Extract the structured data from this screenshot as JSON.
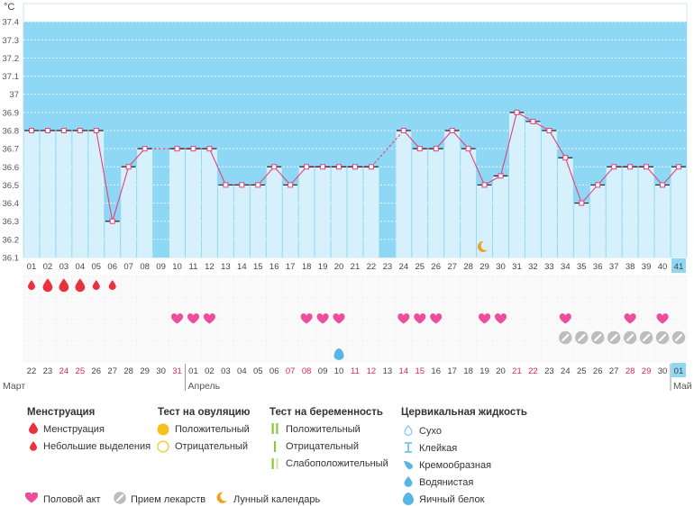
{
  "unit": "°C",
  "colors": {
    "menstruation": "#e8323c",
    "intercourse": "#ee4d9b",
    "medication": "#bdbdbd",
    "moon": "#f0a01e",
    "ovulation_positive": "#f2c31c",
    "ovulation_negative": "#f2c31c",
    "pregnancy": "#8cc63f",
    "fluid_light": "#7ec8ec",
    "fluid": "#58b6e6",
    "chart_fill": "#8fd8f5",
    "bar_fill": "#d7f1fc",
    "line": "#e6407a"
  },
  "chart_data": {
    "type": "line",
    "ylim": [
      36.1,
      37.5
    ],
    "yticks": [
      "37.4",
      "37.3",
      "37.2",
      "37.1",
      "37",
      "36.9",
      "36.8",
      "36.7",
      "36.6",
      "36.5",
      "36.4",
      "36.3",
      "36.2",
      "36.1"
    ],
    "cycle_days": [
      "01",
      "02",
      "03",
      "04",
      "05",
      "06",
      "07",
      "08",
      "09",
      "10",
      "11",
      "12",
      "13",
      "14",
      "15",
      "16",
      "17",
      "18",
      "19",
      "20",
      "21",
      "22",
      "23",
      "24",
      "25",
      "26",
      "27",
      "28",
      "29",
      "30",
      "31",
      "32",
      "33",
      "34",
      "35",
      "36",
      "37",
      "38",
      "39",
      "40",
      "41"
    ],
    "temperatures": [
      36.8,
      36.8,
      36.8,
      36.8,
      36.8,
      36.3,
      36.6,
      36.7,
      null,
      36.7,
      36.7,
      36.7,
      36.5,
      36.5,
      36.5,
      36.6,
      36.5,
      36.6,
      36.6,
      36.6,
      36.6,
      36.6,
      null,
      36.8,
      36.7,
      36.7,
      36.8,
      36.7,
      36.5,
      36.55,
      36.9,
      36.85,
      36.8,
      36.65,
      36.4,
      36.5,
      36.6,
      36.6,
      36.6,
      36.5,
      36.6
    ],
    "dates": [
      "22",
      "23",
      "24",
      "25",
      "26",
      "27",
      "28",
      "29",
      "30",
      "31",
      "01",
      "02",
      "03",
      "04",
      "05",
      "06",
      "07",
      "08",
      "09",
      "10",
      "11",
      "12",
      "13",
      "14",
      "15",
      "16",
      "17",
      "18",
      "19",
      "20",
      "21",
      "22",
      "23",
      "24",
      "25",
      "26",
      "27",
      "28",
      "29",
      "30",
      "01"
    ],
    "weekend_indices": [
      2,
      3,
      9,
      16,
      17,
      20,
      21,
      23,
      24,
      30,
      31,
      37,
      38
    ],
    "months": [
      {
        "label": "Март",
        "index": 0
      },
      {
        "label": "Апрель",
        "index": 10
      },
      {
        "label": "Май",
        "index": 40
      }
    ],
    "menstruation": [
      {
        "day_index": 0,
        "size": "small"
      },
      {
        "day_index": 1,
        "size": "large"
      },
      {
        "day_index": 2,
        "size": "large"
      },
      {
        "day_index": 3,
        "size": "large"
      },
      {
        "day_index": 4,
        "size": "small"
      },
      {
        "day_index": 5,
        "size": "small"
      }
    ],
    "intercourse_days": [
      9,
      10,
      11,
      17,
      18,
      19,
      23,
      24,
      25,
      28,
      29,
      33,
      37,
      39
    ],
    "medication_days": [
      33,
      34,
      35,
      36,
      37,
      38,
      39,
      40
    ],
    "fluid_days": [
      19
    ],
    "moon_day": 28
  },
  "legend": {
    "menstruation": {
      "title": "Менструация",
      "items": [
        "Менструация",
        "Небольшие выделения"
      ]
    },
    "ovulation": {
      "title": "Тест на овуляцию",
      "items": [
        "Положительный",
        "Отрицательный"
      ]
    },
    "pregnancy": {
      "title": "Тест на беременность",
      "items": [
        "Положительный",
        "Отрицательный",
        "Слабоположительный"
      ]
    },
    "fluid": {
      "title": "Цервикальная жидкость",
      "items": [
        "Сухо",
        "Клейкая",
        "Кремообразная",
        "Водянистая",
        "Яичный белок"
      ]
    },
    "bottom": {
      "intercourse": "Половой акт",
      "medication": "Прием лекарств",
      "moon": "Лунный календарь"
    }
  }
}
